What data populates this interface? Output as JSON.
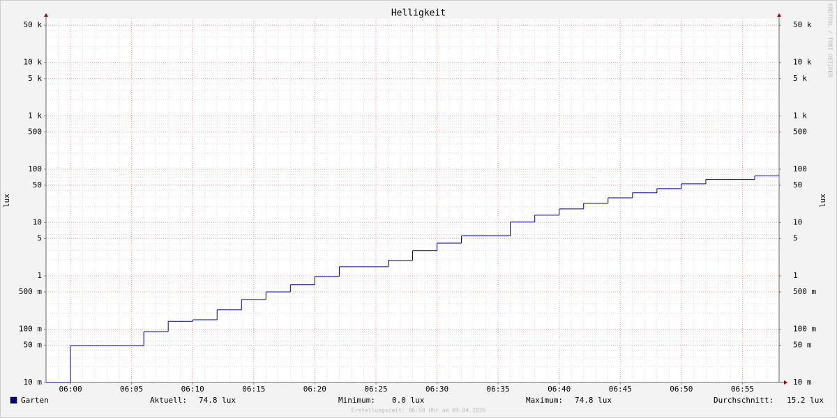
{
  "chart_data": {
    "type": "step",
    "title": "Helligkeit",
    "ylabel": "lux",
    "watermark": "RRDTOOL / TOBI OETIKER",
    "log_y": true,
    "grid": true,
    "ylim": [
      0.01,
      66000
    ],
    "yticks": [
      {
        "value": 50000,
        "label": "50 k"
      },
      {
        "value": 10000,
        "label": "10 k"
      },
      {
        "value": 5000,
        "label": "5 k"
      },
      {
        "value": 1000,
        "label": "1 k"
      },
      500,
      100,
      50,
      10,
      5,
      1,
      {
        "value": 0.5,
        "label": "500 m"
      },
      {
        "value": 0.1,
        "label": "100 m"
      },
      {
        "value": 0.05,
        "label": "50 m"
      },
      {
        "value": 0.01,
        "label": "10 m"
      }
    ],
    "xlim": [
      "05:58",
      "06:58"
    ],
    "xticks": [
      "06:00",
      "06:05",
      "06:10",
      "06:15",
      "06:20",
      "06:25",
      "06:30",
      "06:35",
      "06:40",
      "06:45",
      "06:50",
      "06:55"
    ],
    "series": [
      {
        "name": "Garten",
        "color": "#000090",
        "x": [
          "05:58",
          "06:00",
          "06:06",
          "06:08",
          "06:10",
          "06:12",
          "06:14",
          "06:16",
          "06:18",
          "06:20",
          "06:22",
          "06:26",
          "06:28",
          "06:30",
          "06:32",
          "06:36",
          "06:38",
          "06:40",
          "06:42",
          "06:44",
          "06:46",
          "06:48",
          "06:50",
          "06:52",
          "06:56"
        ],
        "values": [
          0,
          0.049,
          0.09,
          0.14,
          0.15,
          0.23,
          0.36,
          0.5,
          0.68,
          0.97,
          1.48,
          1.94,
          2.97,
          4.1,
          5.6,
          10.2,
          13.7,
          18,
          22.9,
          29,
          36,
          43,
          53,
          64,
          74.8
        ]
      }
    ],
    "stats": [
      {
        "label": "Aktuell:",
        "value": "74.8 lux"
      },
      {
        "label": "Minimum:",
        "value": "0.0 lux"
      },
      {
        "label": "Maximum:",
        "value": "74.8 lux"
      },
      {
        "label": "Durchschnitt:",
        "value": "15.2 lux"
      }
    ],
    "footer": "Erstellungszeit: 06:58 Uhr am 09.04.2026"
  }
}
